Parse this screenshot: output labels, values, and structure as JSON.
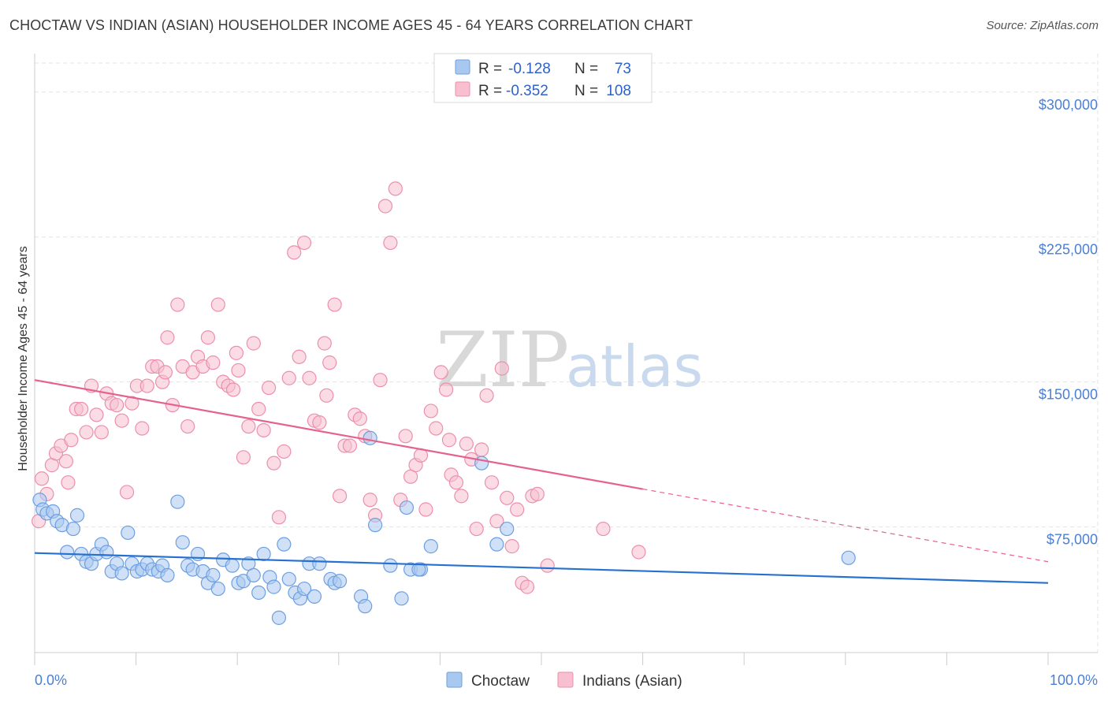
{
  "title": "CHOCTAW VS INDIAN (ASIAN) HOUSEHOLDER INCOME AGES 45 - 64 YEARS CORRELATION CHART",
  "source": "Source: ZipAtlas.com",
  "watermark": {
    "zip": "ZIP",
    "atlas": "atlas"
  },
  "colors": {
    "choctaw_fill": "#a9c8f0",
    "choctaw_stroke": "#6d9fe0",
    "choctaw_line": "#2670d0",
    "indian_fill": "#f7bfd0",
    "indian_stroke": "#ec8fae",
    "indian_line": "#e5628e",
    "tick_text": "#4a7fd4",
    "grid": "#e3e3e3"
  },
  "legend": {
    "rows": [
      {
        "r_label": "R =",
        "r_value": "-0.128",
        "n_label": "N =",
        "n_value": "73"
      },
      {
        "r_label": "R =",
        "r_value": "-0.352",
        "n_label": "N =",
        "n_value": "108"
      }
    ]
  },
  "bottom_legend": [
    "Choctaw",
    "Indians (Asian)"
  ],
  "chart_data": {
    "type": "scatter",
    "xlabel": "",
    "ylabel": "Householder Income Ages 45 - 64 years",
    "x_tick_labels": [
      "0.0%",
      "100.0%"
    ],
    "y_tick_labels": [
      "$75,000",
      "$150,000",
      "$225,000",
      "$300,000"
    ],
    "y_ticks": [
      75000,
      150000,
      225000,
      300000
    ],
    "xlim": [
      0,
      100
    ],
    "ylim": [
      10000,
      315000
    ],
    "grid": true,
    "series": [
      {
        "name": "Choctaw",
        "trend": {
          "x0": 0,
          "y0": 61500,
          "x1": 100,
          "y1": 46000,
          "dash_from": null
        },
        "points": [
          [
            0.5,
            89000
          ],
          [
            0.8,
            84000
          ],
          [
            1.2,
            82000
          ],
          [
            1.8,
            83000
          ],
          [
            2.2,
            78000
          ],
          [
            2.7,
            76000
          ],
          [
            3.2,
            62000
          ],
          [
            3.8,
            74000
          ],
          [
            4.2,
            81000
          ],
          [
            4.6,
            61000
          ],
          [
            5.1,
            57000
          ],
          [
            5.6,
            56000
          ],
          [
            6.1,
            61000
          ],
          [
            6.6,
            66000
          ],
          [
            7.1,
            62000
          ],
          [
            7.6,
            52000
          ],
          [
            8.1,
            56000
          ],
          [
            8.6,
            51000
          ],
          [
            9.2,
            72000
          ],
          [
            9.6,
            56000
          ],
          [
            10.1,
            52000
          ],
          [
            10.6,
            53000
          ],
          [
            11.1,
            56000
          ],
          [
            11.6,
            53000
          ],
          [
            12.2,
            52000
          ],
          [
            12.6,
            55000
          ],
          [
            13.1,
            50000
          ],
          [
            14.1,
            88000
          ],
          [
            14.6,
            67000
          ],
          [
            15.1,
            55000
          ],
          [
            15.6,
            53000
          ],
          [
            16.1,
            61000
          ],
          [
            16.6,
            52000
          ],
          [
            17.1,
            46000
          ],
          [
            17.6,
            50000
          ],
          [
            18.1,
            43000
          ],
          [
            18.6,
            58000
          ],
          [
            19.5,
            55000
          ],
          [
            20.1,
            46000
          ],
          [
            20.6,
            47000
          ],
          [
            21.1,
            56000
          ],
          [
            21.6,
            50000
          ],
          [
            22.1,
            41000
          ],
          [
            22.6,
            61000
          ],
          [
            23.2,
            49000
          ],
          [
            23.6,
            44000
          ],
          [
            24.1,
            28000
          ],
          [
            24.6,
            66000
          ],
          [
            25.1,
            48000
          ],
          [
            25.7,
            41000
          ],
          [
            26.2,
            38000
          ],
          [
            26.6,
            43000
          ],
          [
            27.1,
            56000
          ],
          [
            27.6,
            39000
          ],
          [
            28.1,
            56000
          ],
          [
            29.2,
            48000
          ],
          [
            29.6,
            46000
          ],
          [
            30.1,
            47000
          ],
          [
            32.2,
            39000
          ],
          [
            32.6,
            34000
          ],
          [
            33.1,
            121000
          ],
          [
            33.6,
            76000
          ],
          [
            35.1,
            55000
          ],
          [
            36.2,
            38000
          ],
          [
            36.7,
            85000
          ],
          [
            37.1,
            53000
          ],
          [
            38.1,
            53000
          ],
          [
            39.1,
            65000
          ],
          [
            44.1,
            108000
          ],
          [
            45.6,
            66000
          ],
          [
            46.6,
            74000
          ],
          [
            80.3,
            59000
          ],
          [
            37.9,
            53000
          ]
        ]
      },
      {
        "name": "Indians (Asian)",
        "trend": {
          "x0": 0,
          "y0": 151000,
          "x1": 100,
          "y1": 57000,
          "dash_from": 60
        },
        "points": [
          [
            0.4,
            78000
          ],
          [
            0.7,
            100000
          ],
          [
            1.2,
            92000
          ],
          [
            1.7,
            107000
          ],
          [
            2.1,
            113000
          ],
          [
            2.6,
            117000
          ],
          [
            3.1,
            109000
          ],
          [
            3.6,
            120000
          ],
          [
            4.1,
            136000
          ],
          [
            4.6,
            136000
          ],
          [
            5.1,
            124000
          ],
          [
            5.6,
            148000
          ],
          [
            6.1,
            133000
          ],
          [
            6.6,
            124000
          ],
          [
            7.1,
            144000
          ],
          [
            7.6,
            139000
          ],
          [
            8.1,
            138000
          ],
          [
            8.6,
            130000
          ],
          [
            9.1,
            93000
          ],
          [
            9.6,
            139000
          ],
          [
            10.1,
            148000
          ],
          [
            10.6,
            126000
          ],
          [
            11.1,
            148000
          ],
          [
            11.6,
            158000
          ],
          [
            12.1,
            158000
          ],
          [
            12.6,
            150000
          ],
          [
            13.1,
            173000
          ],
          [
            13.6,
            138000
          ],
          [
            14.1,
            190000
          ],
          [
            14.6,
            158000
          ],
          [
            15.1,
            127000
          ],
          [
            15.6,
            155000
          ],
          [
            16.1,
            163000
          ],
          [
            16.6,
            158000
          ],
          [
            17.1,
            173000
          ],
          [
            17.6,
            160000
          ],
          [
            18.1,
            190000
          ],
          [
            18.6,
            150000
          ],
          [
            19.1,
            148000
          ],
          [
            19.6,
            146000
          ],
          [
            20.1,
            156000
          ],
          [
            20.6,
            111000
          ],
          [
            21.1,
            127000
          ],
          [
            21.6,
            170000
          ],
          [
            22.1,
            136000
          ],
          [
            22.6,
            125000
          ],
          [
            23.1,
            147000
          ],
          [
            23.6,
            108000
          ],
          [
            24.1,
            80000
          ],
          [
            24.6,
            114000
          ],
          [
            25.1,
            152000
          ],
          [
            25.6,
            217000
          ],
          [
            26.1,
            163000
          ],
          [
            26.6,
            222000
          ],
          [
            27.1,
            152000
          ],
          [
            27.6,
            130000
          ],
          [
            28.1,
            129000
          ],
          [
            28.6,
            170000
          ],
          [
            29.1,
            160000
          ],
          [
            29.6,
            190000
          ],
          [
            30.1,
            91000
          ],
          [
            30.6,
            117000
          ],
          [
            31.1,
            117000
          ],
          [
            31.6,
            133000
          ],
          [
            32.1,
            131000
          ],
          [
            32.6,
            122000
          ],
          [
            33.1,
            89000
          ],
          [
            33.6,
            81000
          ],
          [
            34.1,
            151000
          ],
          [
            34.6,
            241000
          ],
          [
            35.1,
            222000
          ],
          [
            35.6,
            250000
          ],
          [
            36.1,
            89000
          ],
          [
            36.6,
            122000
          ],
          [
            37.1,
            101000
          ],
          [
            37.6,
            107000
          ],
          [
            38.1,
            112000
          ],
          [
            38.6,
            84000
          ],
          [
            39.1,
            135000
          ],
          [
            39.6,
            126000
          ],
          [
            40.1,
            155000
          ],
          [
            40.6,
            146000
          ],
          [
            41.1,
            102000
          ],
          [
            41.6,
            98000
          ],
          [
            42.1,
            91000
          ],
          [
            42.6,
            118000
          ],
          [
            43.1,
            110000
          ],
          [
            43.6,
            74000
          ],
          [
            44.1,
            115000
          ],
          [
            44.6,
            143000
          ],
          [
            45.1,
            98000
          ],
          [
            45.6,
            78000
          ],
          [
            46.1,
            157000
          ],
          [
            46.6,
            90000
          ],
          [
            47.1,
            65000
          ],
          [
            47.6,
            84000
          ],
          [
            48.1,
            46000
          ],
          [
            48.6,
            44000
          ],
          [
            49.1,
            91000
          ],
          [
            49.6,
            92000
          ],
          [
            50.6,
            55000
          ],
          [
            56.1,
            74000
          ],
          [
            59.6,
            62000
          ],
          [
            3.3,
            98000
          ],
          [
            12.9,
            155000
          ],
          [
            19.9,
            165000
          ],
          [
            28.8,
            143000
          ],
          [
            40.9,
            120000
          ]
        ]
      }
    ]
  }
}
